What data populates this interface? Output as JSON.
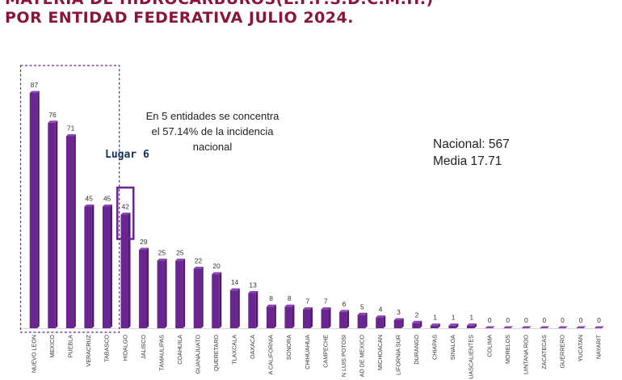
{
  "header": {
    "title_line1": "MATERIA DE HIDROCARBUROS(L.F.P.S.D.C.M.H.)",
    "title_line2": "POR ENTIDAD FEDERATIVA JULIO 2024."
  },
  "annotations": {
    "highlight_note": "En 5 entidades se concentra el 57.14% de la incidencia  nacional",
    "lugar": "Lugar 6",
    "nacional": "Nacional: 567",
    "media": "Media 17.71"
  },
  "colors": {
    "bar": "#6b2590",
    "bar_top": "#8a45b0",
    "highlight_box": "#6b2590",
    "title": "#8b1538"
  },
  "chart_data": {
    "type": "bar",
    "categories": [
      "NUEVO LEON",
      "MEXICO",
      "PUEBLA",
      "VERACRUZ",
      "TABASCO",
      "HIDALGO",
      "JALISCO",
      "TAMAULIPAS",
      "COAHUILA",
      "GUANAJUATO",
      "QUERETARO",
      "TLAXCALA",
      "OAXACA",
      "A CALIFORNIA",
      "SONORA",
      "CHIHUAHUA",
      "CAMPECHE",
      "N LUIS POTOSI",
      "AD DE MEXICO",
      "MICHOACAN",
      "LIFORNIA SUR",
      "DURANGO",
      "CHIAPAS",
      "SINALOA",
      "UASCALIENTES",
      "COLIMA",
      "MORELOS",
      "UINTANA ROO",
      "ZACATECAS",
      "GUERRERO",
      "YUCATAN",
      "NAYARIT"
    ],
    "values": [
      87,
      76,
      71,
      45,
      45,
      42,
      29,
      25,
      25,
      22,
      20,
      14,
      13,
      8,
      8,
      7,
      7,
      6,
      5,
      4,
      3,
      2,
      1,
      1,
      1,
      0,
      0,
      0,
      0,
      0,
      0,
      0
    ],
    "ylim": [
      0,
      87
    ],
    "highlight_group": {
      "from_index": 0,
      "to_index": 4,
      "style": "dashed"
    },
    "highlight_single": {
      "index": 5,
      "style": "solid"
    }
  }
}
